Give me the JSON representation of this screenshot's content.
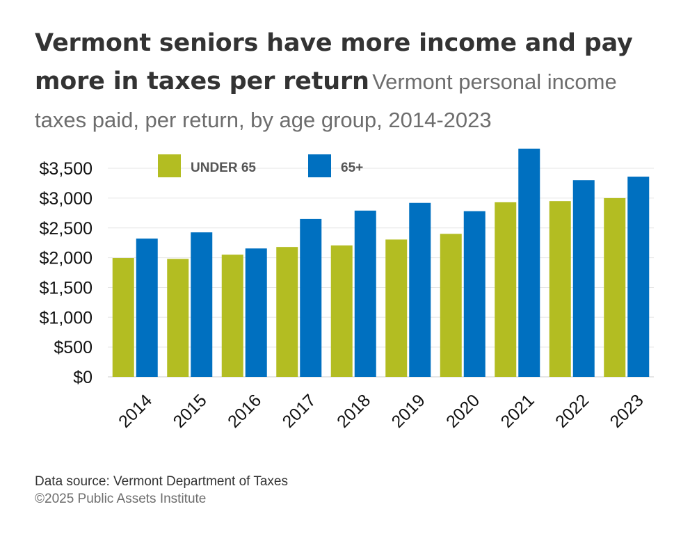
{
  "header": {
    "title": "Vermont seniors have more income and pay more in taxes per return",
    "subtitle": "Vermont personal income taxes paid, per return, by age group, 2014-2023"
  },
  "footer": {
    "source": "Data source: Vermont Department of Taxes",
    "copyright": "©2025 Public Assets Institute"
  },
  "colors": {
    "under65": "#b3bd22",
    "over65": "#0070c0",
    "gridline": "#e6e6e6",
    "axis_text": "#111111",
    "legend_text": "#555555"
  },
  "chart_data": {
    "type": "bar",
    "title": "",
    "xlabel": "",
    "ylabel": "",
    "categories": [
      "2014",
      "2015",
      "2016",
      "2017",
      "2018",
      "2019",
      "2020",
      "2021",
      "2022",
      "2023"
    ],
    "series": [
      {
        "name": "UNDER 65",
        "values": [
          1995,
          1980,
          2050,
          2180,
          2205,
          2305,
          2400,
          2930,
          2950,
          3000
        ]
      },
      {
        "name": "65+",
        "values": [
          2320,
          2425,
          2155,
          2650,
          2790,
          2920,
          2780,
          3830,
          3300,
          3360
        ]
      }
    ],
    "ylim": [
      0,
      3750
    ],
    "yticks": [
      0,
      500,
      1000,
      1500,
      2000,
      2500,
      3000,
      3500
    ],
    "ytick_labels": [
      "$0",
      "$500",
      "$1,000",
      "$1,500",
      "$2,000",
      "$2,500",
      "$3,000",
      "$3,500"
    ],
    "grid": true,
    "legend_position": "top-left"
  }
}
